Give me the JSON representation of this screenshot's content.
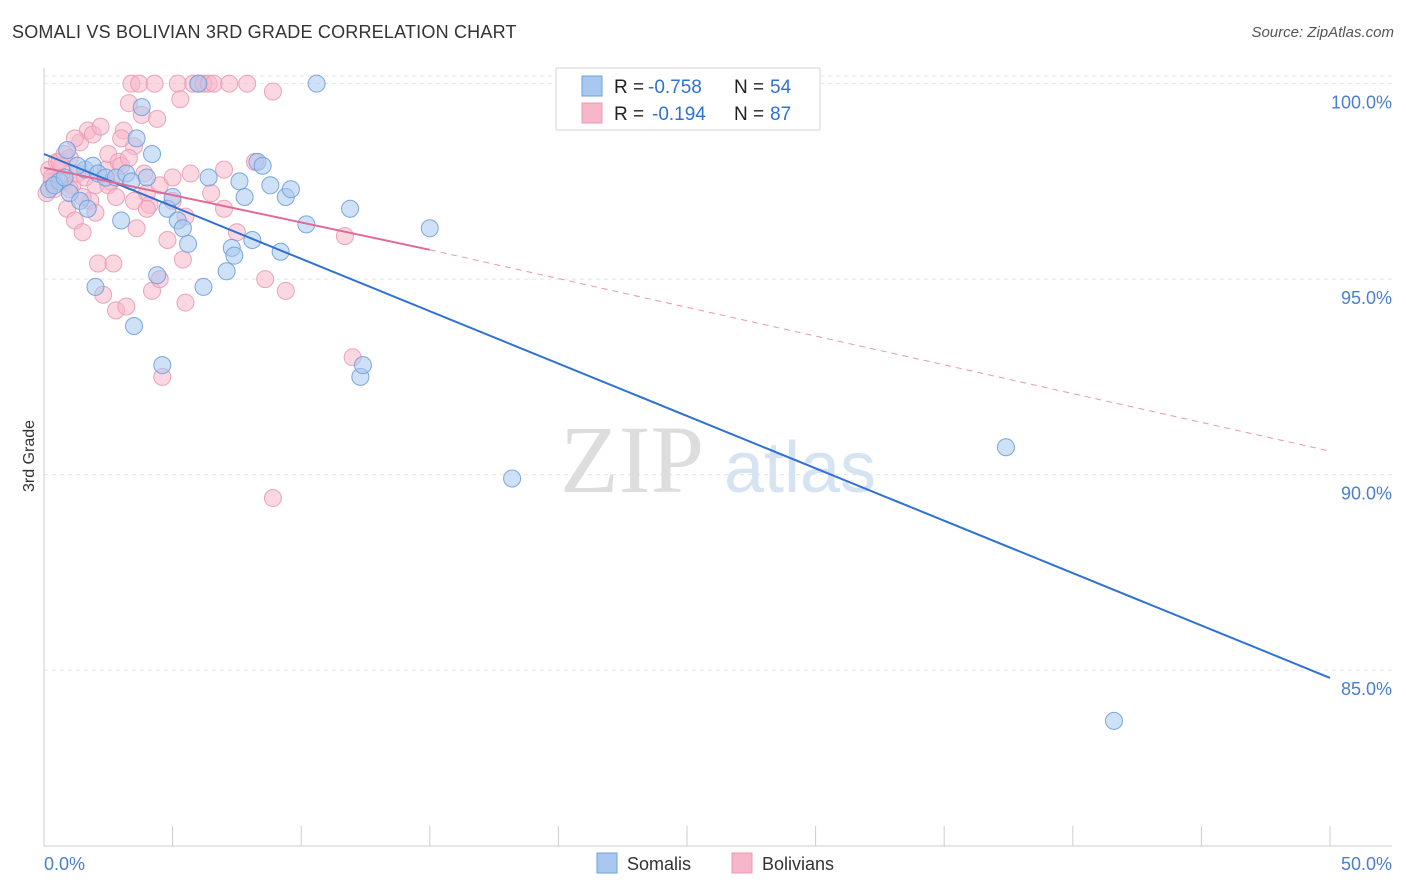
{
  "header": {
    "title": "SOMALI VS BOLIVIAN 3RD GRADE CORRELATION CHART",
    "source": "Source: ZipAtlas.com"
  },
  "watermark": {
    "zip": "ZIP",
    "atlas": "atlas"
  },
  "colors": {
    "somali_fill": "#a8c8f0",
    "somali_stroke": "#6f9fd8",
    "somali_line": "#2f72d0",
    "bolivian_fill": "#f7b6ca",
    "bolivian_stroke": "#e99bb4",
    "bolivian_line": "#e06a96",
    "tick_label": "#4a7fd0",
    "grid": "#e4e4e4"
  },
  "legend_box": {
    "somali": {
      "r_label": "R =",
      "r_value": "-0.758",
      "n_label": "N =",
      "n_value": "54"
    },
    "bolivian": {
      "r_label": "R =",
      "r_value": "-0.194",
      "n_label": "N =",
      "n_value": "87"
    }
  },
  "chart_data": {
    "type": "scatter",
    "title": "SOMALI VS BOLIVIAN 3RD GRADE CORRELATION CHART",
    "xlabel": "",
    "ylabel": "3rd Grade",
    "xlim": [
      0,
      50
    ],
    "ylim": [
      80.5,
      100.4
    ],
    "x_tick_labels": [
      "0.0%",
      "50.0%"
    ],
    "y_ticks": [
      85,
      90,
      95,
      100
    ],
    "y_tick_labels": [
      "85.0%",
      "90.0%",
      "95.0%",
      "100.0%"
    ],
    "grid": true,
    "legend": [
      "Somalis",
      "Bolivians"
    ],
    "legend_position": "bottom-center",
    "series": [
      {
        "name": "Somalis",
        "r": -0.758,
        "n": 54,
        "trend": {
          "x": [
            0,
            50
          ],
          "y": [
            98.2,
            84.8
          ],
          "dashed_extension": false
        },
        "points": [
          [
            0.2,
            97.3
          ],
          [
            0.6,
            97.5
          ],
          [
            0.9,
            98.3
          ],
          [
            1.0,
            97.2
          ],
          [
            1.4,
            97.0
          ],
          [
            1.6,
            97.8
          ],
          [
            1.9,
            97.9
          ],
          [
            2.1,
            97.7
          ],
          [
            2.4,
            97.6
          ],
          [
            2.8,
            97.6
          ],
          [
            3.0,
            96.5
          ],
          [
            3.2,
            97.7
          ],
          [
            3.4,
            97.5
          ],
          [
            3.6,
            98.6
          ],
          [
            3.8,
            99.4
          ],
          [
            4.0,
            97.6
          ],
          [
            4.2,
            98.2
          ],
          [
            4.4,
            95.1
          ],
          [
            4.6,
            92.8
          ],
          [
            4.8,
            96.8
          ],
          [
            5.0,
            97.1
          ],
          [
            5.2,
            96.5
          ],
          [
            5.4,
            96.3
          ],
          [
            5.6,
            95.9
          ],
          [
            6.0,
            100.0
          ],
          [
            6.2,
            94.8
          ],
          [
            6.4,
            97.6
          ],
          [
            7.1,
            95.2
          ],
          [
            7.3,
            95.8
          ],
          [
            7.4,
            95.6
          ],
          [
            7.6,
            97.5
          ],
          [
            7.8,
            97.1
          ],
          [
            8.1,
            96.0
          ],
          [
            8.3,
            98.0
          ],
          [
            8.5,
            97.9
          ],
          [
            8.8,
            97.4
          ],
          [
            9.2,
            95.7
          ],
          [
            9.4,
            97.1
          ],
          [
            9.6,
            97.3
          ],
          [
            10.2,
            96.4
          ],
          [
            10.6,
            100.0
          ],
          [
            11.9,
            96.8
          ],
          [
            12.3,
            92.5
          ],
          [
            12.4,
            92.8
          ],
          [
            15.0,
            96.3
          ],
          [
            18.2,
            89.9
          ],
          [
            1.3,
            97.9
          ],
          [
            1.7,
            96.8
          ],
          [
            0.4,
            97.4
          ],
          [
            2.0,
            94.8
          ],
          [
            3.5,
            93.8
          ],
          [
            37.4,
            90.7
          ],
          [
            41.6,
            83.7
          ],
          [
            0.8,
            97.6
          ]
        ]
      },
      {
        "name": "Bolivians",
        "r": -0.194,
        "n": 87,
        "trend": {
          "x": [
            0,
            15
          ],
          "y": [
            97.85,
            95.75
          ],
          "dashed_extension": true,
          "extension_to": [
            50,
            90.6
          ]
        },
        "points": [
          [
            0.1,
            97.2
          ],
          [
            0.2,
            97.8
          ],
          [
            0.3,
            97.5
          ],
          [
            0.4,
            97.3
          ],
          [
            0.5,
            98.0
          ],
          [
            0.6,
            97.6
          ],
          [
            0.7,
            97.9
          ],
          [
            0.8,
            97.5
          ],
          [
            0.9,
            96.8
          ],
          [
            1.0,
            98.1
          ],
          [
            1.1,
            97.4
          ],
          [
            1.2,
            96.5
          ],
          [
            1.3,
            97.7
          ],
          [
            1.4,
            98.5
          ],
          [
            1.5,
            96.2
          ],
          [
            1.6,
            97.6
          ],
          [
            1.7,
            98.8
          ],
          [
            1.8,
            97.0
          ],
          [
            1.9,
            98.7
          ],
          [
            2.0,
            97.4
          ],
          [
            2.1,
            95.4
          ],
          [
            2.2,
            98.9
          ],
          [
            2.3,
            94.6
          ],
          [
            2.4,
            97.8
          ],
          [
            2.5,
            98.2
          ],
          [
            2.6,
            97.5
          ],
          [
            2.7,
            95.4
          ],
          [
            2.8,
            94.2
          ],
          [
            2.9,
            98.0
          ],
          [
            3.0,
            97.9
          ],
          [
            3.1,
            98.8
          ],
          [
            3.2,
            94.3
          ],
          [
            3.3,
            99.5
          ],
          [
            3.4,
            100.0
          ],
          [
            3.5,
            98.4
          ],
          [
            3.6,
            96.3
          ],
          [
            3.7,
            100.0
          ],
          [
            3.8,
            99.2
          ],
          [
            3.9,
            97.7
          ],
          [
            4.0,
            97.2
          ],
          [
            4.1,
            96.9
          ],
          [
            4.2,
            94.7
          ],
          [
            4.3,
            100.0
          ],
          [
            4.4,
            99.1
          ],
          [
            4.5,
            95.0
          ],
          [
            4.6,
            92.5
          ],
          [
            4.8,
            96.0
          ],
          [
            5.0,
            97.0
          ],
          [
            5.2,
            100.0
          ],
          [
            5.3,
            99.6
          ],
          [
            5.4,
            95.5
          ],
          [
            5.5,
            94.4
          ],
          [
            5.7,
            97.7
          ],
          [
            5.8,
            100.0
          ],
          [
            6.0,
            100.0
          ],
          [
            6.2,
            100.0
          ],
          [
            6.4,
            100.0
          ],
          [
            6.6,
            100.0
          ],
          [
            7.0,
            96.8
          ],
          [
            7.2,
            100.0
          ],
          [
            7.5,
            96.2
          ],
          [
            7.9,
            100.0
          ],
          [
            8.2,
            98.0
          ],
          [
            8.6,
            95.0
          ],
          [
            8.9,
            99.8
          ],
          [
            9.4,
            94.7
          ],
          [
            11.7,
            96.1
          ],
          [
            12.0,
            93.0
          ],
          [
            8.9,
            89.4
          ],
          [
            0.3,
            97.6
          ],
          [
            0.6,
            98.0
          ],
          [
            1.0,
            97.3
          ],
          [
            1.5,
            97.1
          ],
          [
            2.0,
            96.7
          ],
          [
            2.5,
            97.4
          ],
          [
            3.0,
            98.6
          ],
          [
            3.5,
            97.0
          ],
          [
            4.0,
            96.8
          ],
          [
            4.5,
            97.4
          ],
          [
            5.0,
            97.6
          ],
          [
            5.5,
            96.6
          ],
          [
            6.5,
            97.2
          ],
          [
            7.0,
            97.8
          ],
          [
            1.2,
            98.6
          ],
          [
            0.8,
            98.2
          ],
          [
            2.8,
            97.1
          ],
          [
            3.3,
            98.1
          ]
        ]
      }
    ]
  }
}
